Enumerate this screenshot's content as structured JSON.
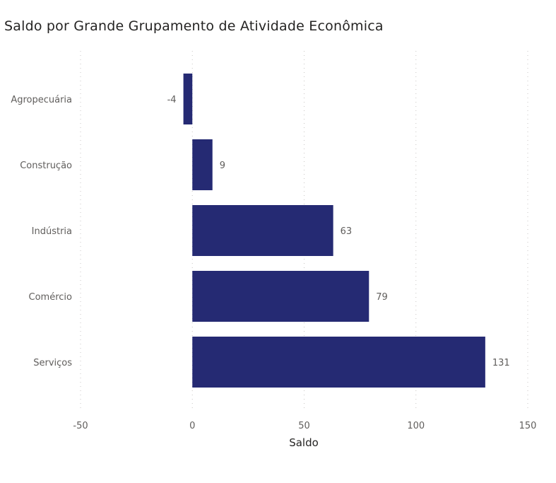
{
  "chart_data": {
    "type": "bar",
    "orientation": "horizontal",
    "title": "Saldo por Grande Grupamento de Atividade Econômica",
    "xlabel": "Saldo",
    "ylabel": "",
    "categories": [
      "Agropecuária",
      "Construção",
      "Indústria",
      "Comércio",
      "Serviços"
    ],
    "values": [
      -4,
      9,
      63,
      79,
      131
    ],
    "data_labels": [
      "-4",
      "9",
      "63",
      "79",
      "131"
    ],
    "xlim": [
      -50,
      150
    ],
    "x_ticks": [
      -50,
      0,
      50,
      100,
      150
    ],
    "x_tick_labels": [
      "-50",
      "0",
      "50",
      "100",
      "150"
    ],
    "grid": "vertical dotted",
    "bar_color": "#252A73",
    "legend": "none"
  }
}
